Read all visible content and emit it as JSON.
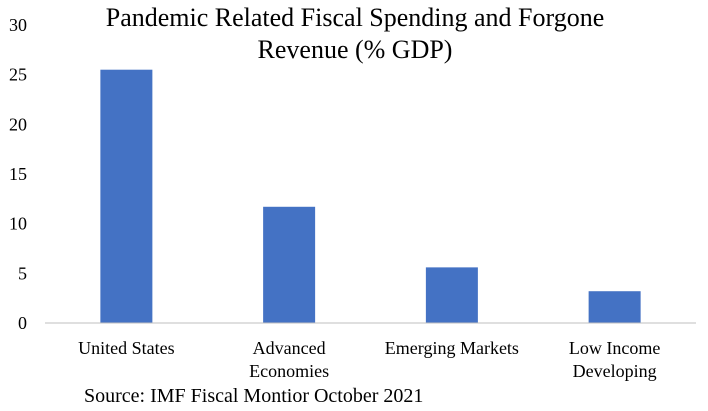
{
  "chart_data": {
    "type": "bar",
    "title_lines": [
      "Pandemic Related Fiscal Spending and Forgone",
      "Revenue (% GDP)"
    ],
    "categories": [
      [
        "United States"
      ],
      [
        "Advanced",
        "Economies"
      ],
      [
        "Emerging Markets"
      ],
      [
        "Low Income",
        "Developing"
      ]
    ],
    "values": [
      25.5,
      11.7,
      5.6,
      3.2
    ],
    "ylim": [
      0,
      30
    ],
    "yticks": [
      "0",
      "5",
      "10",
      "15",
      "20",
      "25",
      "30"
    ],
    "bar_color": "#4472C4",
    "axis_color": "#BFBFBF",
    "grid": false,
    "legend": "none",
    "source": "Source: IMF Fiscal Montior October 2021"
  }
}
